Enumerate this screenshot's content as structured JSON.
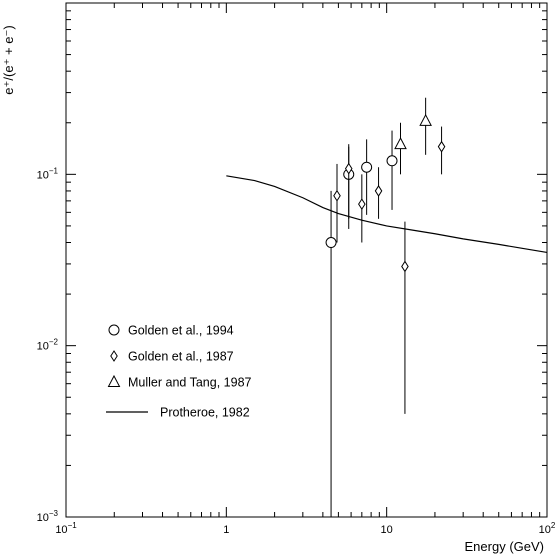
{
  "chart_data": {
    "type": "scatter",
    "xscale": "log",
    "yscale": "log",
    "xlim": [
      0.1,
      100
    ],
    "ylim": [
      0.001,
      1
    ],
    "xlabel": "Energy (GeV)",
    "ylabel": "e⁺/(e⁺ + e⁻)",
    "x_ticks": [
      {
        "value": 0.1,
        "base": "10",
        "exp": "−1"
      },
      {
        "value": 1,
        "base": "1",
        "exp": ""
      },
      {
        "value": 10,
        "base": "10",
        "exp": ""
      },
      {
        "value": 100,
        "base": "10",
        "exp": "2"
      }
    ],
    "y_ticks": [
      {
        "value": 0.001,
        "base": "10",
        "exp": "−3"
      },
      {
        "value": 0.01,
        "base": "10",
        "exp": "−2"
      },
      {
        "value": 0.1,
        "base": "10",
        "exp": "−1"
      }
    ],
    "legend_position": "lower-left",
    "series": [
      {
        "name": "Golden et al., 1994",
        "marker": "circle",
        "points": [
          {
            "x": 4.5,
            "y": 0.04,
            "ylo": 0.001,
            "yhi": 0.08
          },
          {
            "x": 5.8,
            "y": 0.1,
            "ylo": 0.055,
            "yhi": 0.15
          },
          {
            "x": 7.5,
            "y": 0.11,
            "ylo": 0.058,
            "yhi": 0.16
          },
          {
            "x": 10.8,
            "y": 0.12,
            "ylo": 0.062,
            "yhi": 0.18
          }
        ]
      },
      {
        "name": "Golden et al., 1987",
        "marker": "diamond",
        "points": [
          {
            "x": 4.9,
            "y": 0.075,
            "ylo": 0.04,
            "yhi": 0.115
          },
          {
            "x": 5.8,
            "y": 0.108,
            "ylo": 0.048,
            "yhi": 0.145
          },
          {
            "x": 7.0,
            "y": 0.067,
            "ylo": 0.04,
            "yhi": 0.1
          },
          {
            "x": 8.9,
            "y": 0.08,
            "ylo": 0.055,
            "yhi": 0.11
          },
          {
            "x": 13.0,
            "y": 0.029,
            "ylo": 0.004,
            "yhi": 0.053
          },
          {
            "x": 22.0,
            "y": 0.145,
            "ylo": 0.1,
            "yhi": 0.19
          }
        ]
      },
      {
        "name": "Muller and Tang, 1987",
        "marker": "triangle",
        "points": [
          {
            "x": 12.2,
            "y": 0.15,
            "ylo": 0.1,
            "yhi": 0.2
          },
          {
            "x": 17.5,
            "y": 0.205,
            "ylo": 0.13,
            "yhi": 0.28
          }
        ]
      },
      {
        "name": "Protheroe, 1982",
        "marker": "line",
        "points": [
          {
            "x": 1.0,
            "y": 0.098
          },
          {
            "x": 1.5,
            "y": 0.092
          },
          {
            "x": 2.0,
            "y": 0.085
          },
          {
            "x": 3.0,
            "y": 0.073
          },
          {
            "x": 4.0,
            "y": 0.064
          },
          {
            "x": 5.0,
            "y": 0.059
          },
          {
            "x": 7.0,
            "y": 0.054
          },
          {
            "x": 10.0,
            "y": 0.05
          },
          {
            "x": 15.0,
            "y": 0.047
          },
          {
            "x": 20.0,
            "y": 0.045
          },
          {
            "x": 30.0,
            "y": 0.042
          },
          {
            "x": 50.0,
            "y": 0.039
          },
          {
            "x": 70.0,
            "y": 0.037
          },
          {
            "x": 100.0,
            "y": 0.035
          }
        ]
      }
    ]
  }
}
